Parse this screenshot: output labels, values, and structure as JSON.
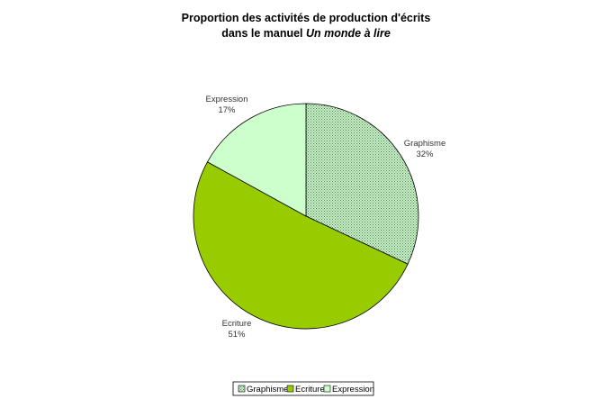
{
  "chart_data": {
    "type": "pie",
    "title": "Proportion des activités de production d'écrits",
    "title_line2_prefix": "dans le manuel ",
    "title_line2_italic": "Un monde à lire",
    "categories": [
      "Graphisme",
      "Ecriture",
      "Expression"
    ],
    "values": [
      32,
      51,
      17
    ],
    "value_labels": [
      "32%",
      "51%",
      "17%"
    ],
    "colors": [
      "#cfeecf",
      "#99cc00",
      "#ccffcc"
    ],
    "patterns": [
      "dotted",
      "solid",
      "solid"
    ],
    "start_angle": "12 o'clock",
    "direction": "clockwise",
    "legend": {
      "placement": "bottom",
      "entries": [
        "Graphisme",
        "Ecriture",
        "Expression"
      ]
    }
  }
}
